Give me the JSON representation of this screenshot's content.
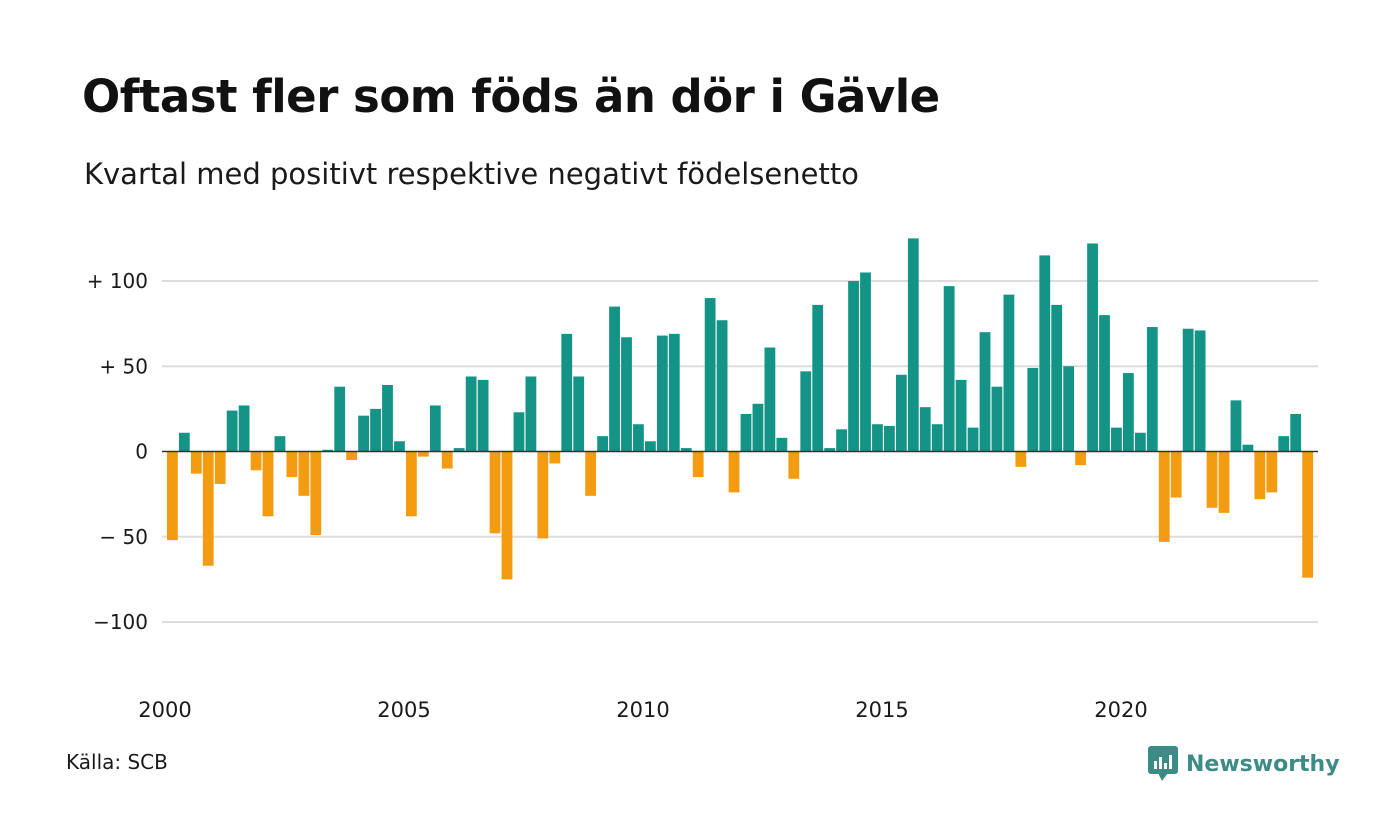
{
  "title": "Oftast fler som föds än dör i Gävle",
  "subtitle": "Kvartal med positivt respektive negativt födelsenetto",
  "source": "Källa: SCB",
  "brand": {
    "name": "Newsworthy",
    "icon": "newsworthy-logo-icon",
    "color": "#3d8b87"
  },
  "colors": {
    "positive": "#139487",
    "negative": "#f39c12",
    "grid": "#dddddd",
    "zero_line": "#333333"
  },
  "chart_data": {
    "type": "bar",
    "title": "Oftast fler som föds än dör i Gävle",
    "subtitle": "Kvartal med positivt respektive negativt födelsenetto",
    "ylim": [
      -130,
      130
    ],
    "y_ticks": [
      {
        "value": 100,
        "label": "+ 100"
      },
      {
        "value": 50,
        "label": "+  50"
      },
      {
        "value": 0,
        "label": "0"
      },
      {
        "value": -50,
        "label": "− 50"
      },
      {
        "value": -100,
        "label": "−100"
      }
    ],
    "x_ticks": [
      "2000",
      "2005",
      "2010",
      "2015",
      "2020"
    ],
    "start_year": 2000,
    "grid": true,
    "values": [
      -52,
      11,
      -13,
      -67,
      -19,
      24,
      27,
      -11,
      -38,
      9,
      -15,
      -26,
      -49,
      1,
      38,
      -5,
      21,
      25,
      39,
      6,
      -38,
      -3,
      27,
      -10,
      2,
      44,
      42,
      -48,
      -75,
      23,
      44,
      -51,
      -7,
      69,
      44,
      -26,
      9,
      85,
      67,
      16,
      6,
      68,
      69,
      2,
      -15,
      90,
      77,
      -24,
      22,
      28,
      61,
      8,
      -16,
      47,
      86,
      2,
      13,
      100,
      105,
      16,
      15,
      45,
      125,
      26,
      16,
      97,
      42,
      14,
      70,
      38,
      92,
      -9,
      49,
      115,
      86,
      50,
      -8,
      122,
      80,
      14,
      46,
      11,
      73,
      -53,
      -27,
      72,
      71,
      -33,
      -36,
      30,
      4,
      -28,
      -24,
      9,
      22,
      -74
    ]
  }
}
